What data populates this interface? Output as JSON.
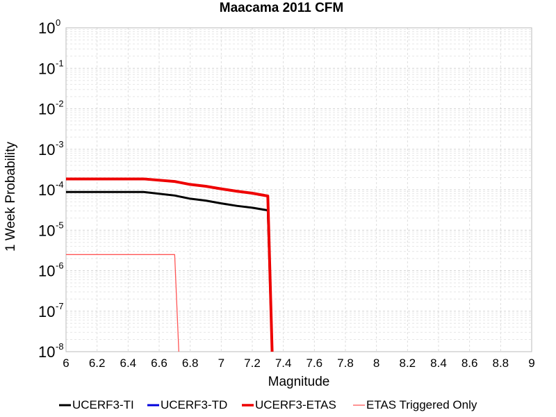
{
  "chart_data": {
    "type": "line",
    "title": "Maacama 2011 CFM",
    "xlabel": "Magnitude",
    "ylabel": "1 Week Probability",
    "xlim": [
      6,
      9
    ],
    "ylim": [
      1e-08,
      1
    ],
    "yscale": "log",
    "grid": true,
    "legend_position": "bottom",
    "x_ticks": [
      "6",
      "6.2",
      "6.4",
      "6.6",
      "6.8",
      "7",
      "7.2",
      "7.4",
      "7.6",
      "7.8",
      "8",
      "8.2",
      "8.4",
      "8.6",
      "8.8",
      "9"
    ],
    "y_ticks": [
      {
        "base": "10",
        "exp": "-8"
      },
      {
        "base": "10",
        "exp": "-7"
      },
      {
        "base": "10",
        "exp": "-6"
      },
      {
        "base": "10",
        "exp": "-5"
      },
      {
        "base": "10",
        "exp": "-4"
      },
      {
        "base": "10",
        "exp": "-3"
      },
      {
        "base": "10",
        "exp": "-2"
      },
      {
        "base": "10",
        "exp": "-1"
      },
      {
        "base": "10",
        "exp": "0"
      }
    ],
    "series": [
      {
        "name": "UCERF3-TI",
        "color": "#000000",
        "width": 3,
        "x": [
          6.0,
          6.5,
          6.7,
          6.8,
          6.9,
          7.0,
          7.1,
          7.2,
          7.3,
          7.33
        ],
        "y": [
          8.8e-05,
          8.8e-05,
          7.2e-05,
          6e-05,
          5.4e-05,
          4.6e-05,
          4e-05,
          3.6e-05,
          3.1e-05,
          5e-09
        ]
      },
      {
        "name": "UCERF3-TD",
        "color": "#0000dd",
        "width": 3,
        "x": [
          6.0,
          6.5,
          6.7,
          6.8,
          6.9,
          7.0,
          7.1,
          7.2,
          7.3,
          7.33
        ],
        "y": [
          0.000185,
          0.000185,
          0.00016,
          0.000135,
          0.000122,
          0.000105,
          9.2e-05,
          8.2e-05,
          7e-05,
          5e-09
        ]
      },
      {
        "name": "UCERF3-ETAS",
        "color": "#ee0000",
        "width": 4,
        "x": [
          6.0,
          6.5,
          6.7,
          6.8,
          6.9,
          7.0,
          7.1,
          7.2,
          7.3,
          7.33
        ],
        "y": [
          0.000185,
          0.000185,
          0.00016,
          0.000135,
          0.000122,
          0.000105,
          9.2e-05,
          8.2e-05,
          7e-05,
          5e-09
        ]
      },
      {
        "name": "ETAS Triggered Only",
        "color": "#ff5555",
        "width": 1.3,
        "x": [
          6.0,
          6.7,
          6.73
        ],
        "y": [
          2.5e-06,
          2.5e-06,
          5e-09
        ]
      }
    ]
  }
}
